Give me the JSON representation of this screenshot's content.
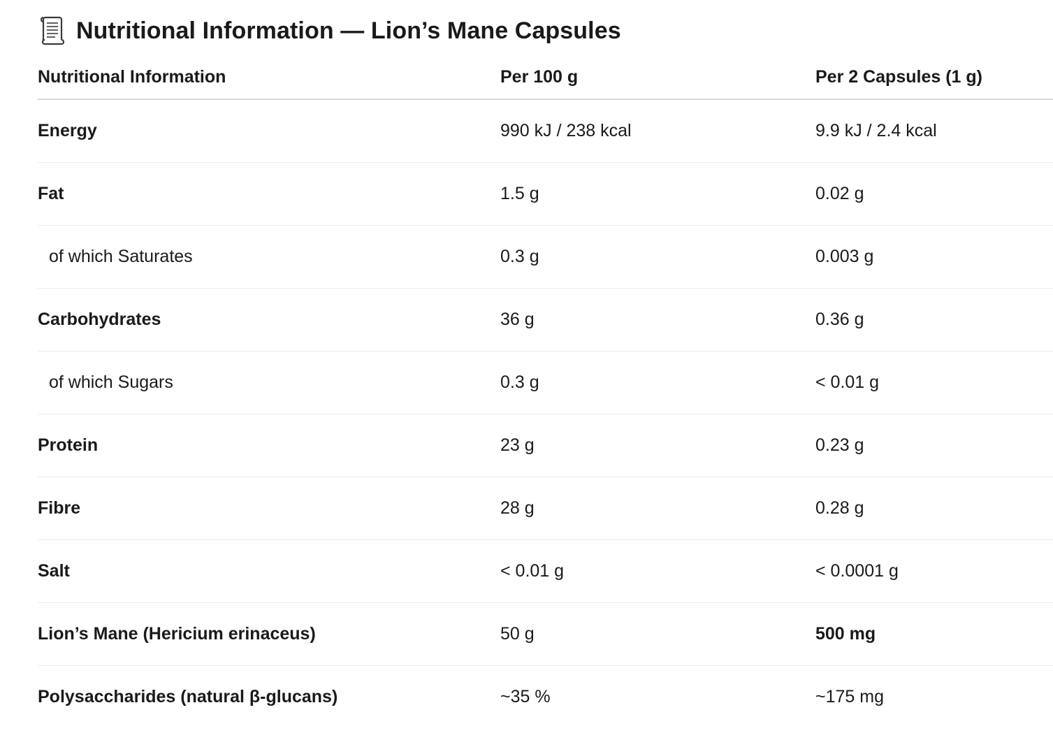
{
  "title": {
    "icon": "scroll-icon",
    "text": "Nutritional Information — Lion’s Mane Capsules"
  },
  "table": {
    "headers": [
      "Nutritional Information",
      "Per 100 g",
      "Per 2 Capsules (1 g)"
    ],
    "rows": [
      {
        "name": "Energy",
        "per100": "990 kJ / 238 kcal",
        "per2": "9.9 kJ / 2.4 kcal",
        "sub": false,
        "per2_bold": false
      },
      {
        "name": "Fat",
        "per100": "1.5 g",
        "per2": "0.02 g",
        "sub": false,
        "per2_bold": false
      },
      {
        "name": "of which Saturates",
        "per100": "0.3 g",
        "per2": "0.003 g",
        "sub": true,
        "per2_bold": false
      },
      {
        "name": "Carbohydrates",
        "per100": "36 g",
        "per2": "0.36 g",
        "sub": false,
        "per2_bold": false
      },
      {
        "name": "of which Sugars",
        "per100": "0.3 g",
        "per2": "< 0.01 g",
        "sub": true,
        "per2_bold": false
      },
      {
        "name": "Protein",
        "per100": "23 g",
        "per2": "0.23 g",
        "sub": false,
        "per2_bold": false
      },
      {
        "name": "Fibre",
        "per100": "28 g",
        "per2": "0.28 g",
        "sub": false,
        "per2_bold": false
      },
      {
        "name": "Salt",
        "per100": "< 0.01 g",
        "per2": "< 0.0001 g",
        "sub": false,
        "per2_bold": false
      },
      {
        "name": "Lion’s Mane (Hericium erinaceus)",
        "per100": "50 g",
        "per2": "500 mg",
        "sub": false,
        "per2_bold": true
      },
      {
        "name": "Polysaccharides (natural β-glucans)",
        "per100": "~35 %",
        "per2": "~175 mg",
        "sub": false,
        "per2_bold": false
      }
    ]
  }
}
